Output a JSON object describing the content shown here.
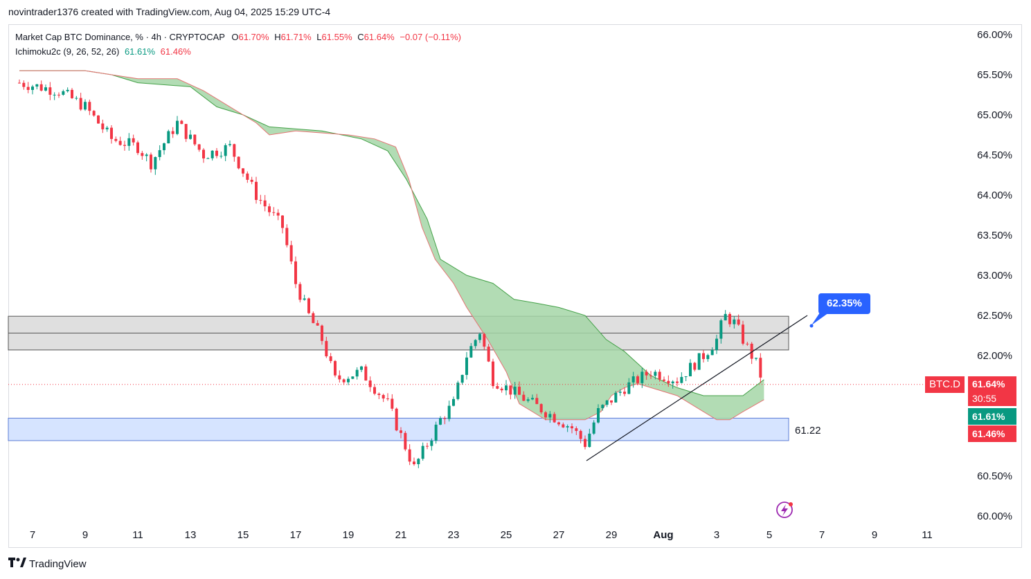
{
  "header": {
    "attribution": "novintrader1376 created with TradingView.com, Aug 04, 2025 15:29 UTC-4"
  },
  "legend": {
    "symbol": "Market Cap BTC Dominance, % · 4h · CRYPTOCAP",
    "open_label": "O",
    "open": "61.70%",
    "high_label": "H",
    "high": "61.71%",
    "low_label": "L",
    "low": "61.55%",
    "close_label": "C",
    "close": "61.64%",
    "change": "−0.07 (−0.11%)",
    "indicator": "Ichimoku2c (9, 26, 52, 26)",
    "ind_val1": "61.61%",
    "ind_val2": "61.46%"
  },
  "labels": {
    "callout": "62.35%",
    "support": "61.22",
    "ticker": "BTC.D",
    "price": "61.64%",
    "countdown": "30:55",
    "ichi_line1": "61.61%",
    "ichi_line2": "61.46%"
  },
  "footer": {
    "brand": "TradingView"
  },
  "colors": {
    "up": "#089981",
    "down": "#f23645",
    "cloud": "#a5d6a7",
    "callout": "#2962ff",
    "support_zone": "#d6e4ff",
    "resistance_zone": "#d9d9d9"
  },
  "chart_data": {
    "type": "candlestick",
    "title": "Market Cap BTC Dominance, % · 4h · CRYPTOCAP",
    "ylim": [
      60.0,
      66.0
    ],
    "y_ticks": [
      "66.00%",
      "65.50%",
      "65.00%",
      "64.50%",
      "64.00%",
      "63.50%",
      "63.00%",
      "62.50%",
      "62.00%",
      "60.50%",
      "60.00%"
    ],
    "x_ticks": [
      "7",
      "9",
      "11",
      "13",
      "15",
      "17",
      "19",
      "21",
      "23",
      "25",
      "27",
      "29",
      "Aug",
      "3",
      "5",
      "7",
      "9",
      "11"
    ],
    "approx_close_path": [
      {
        "day": 6.5,
        "value": 65.4
      },
      {
        "day": 8,
        "value": 65.3
      },
      {
        "day": 9,
        "value": 65.1
      },
      {
        "day": 10,
        "value": 64.7
      },
      {
        "day": 11,
        "value": 64.6
      },
      {
        "day": 11.5,
        "value": 64.4
      },
      {
        "day": 12.5,
        "value": 64.9
      },
      {
        "day": 13.5,
        "value": 64.5
      },
      {
        "day": 14.5,
        "value": 64.6
      },
      {
        "day": 15.5,
        "value": 64.0
      },
      {
        "day": 16.5,
        "value": 63.6
      },
      {
        "day": 17,
        "value": 62.9
      },
      {
        "day": 17.5,
        "value": 62.5
      },
      {
        "day": 18,
        "value": 62.2
      },
      {
        "day": 18.5,
        "value": 61.7
      },
      {
        "day": 19.5,
        "value": 61.8
      },
      {
        "day": 20.5,
        "value": 61.4
      },
      {
        "day": 21,
        "value": 61.0
      },
      {
        "day": 21.5,
        "value": 60.6
      },
      {
        "day": 22.5,
        "value": 61.2
      },
      {
        "day": 23,
        "value": 61.4
      },
      {
        "day": 23.5,
        "value": 62.0
      },
      {
        "day": 24,
        "value": 62.3
      },
      {
        "day": 24.5,
        "value": 61.7
      },
      {
        "day": 25.5,
        "value": 61.5
      },
      {
        "day": 26.5,
        "value": 61.3
      },
      {
        "day": 27.5,
        "value": 61.1
      },
      {
        "day": 28,
        "value": 60.9
      },
      {
        "day": 28.5,
        "value": 61.3
      },
      {
        "day": 29.5,
        "value": 61.6
      },
      {
        "day": 30.5,
        "value": 61.8
      },
      {
        "day": 31.5,
        "value": 61.7
      },
      {
        "day": 32.5,
        "value": 62.0
      },
      {
        "day": 33,
        "value": 62.2
      },
      {
        "day": 33.3,
        "value": 62.5
      },
      {
        "day": 33.7,
        "value": 62.4
      },
      {
        "day": 34,
        "value": 62.2
      },
      {
        "day": 34.5,
        "value": 61.9
      },
      {
        "day": 34.8,
        "value": 61.64
      }
    ],
    "ichimoku_values": {
      "tenkan": 61.61,
      "kijun": 61.46
    },
    "last_price": 61.64,
    "resistance_zone": [
      62.07,
      62.49
    ],
    "resistance_mid": 62.28,
    "support_zone": [
      60.94,
      61.22
    ],
    "support_label": 61.22,
    "callout_value": 62.35
  }
}
